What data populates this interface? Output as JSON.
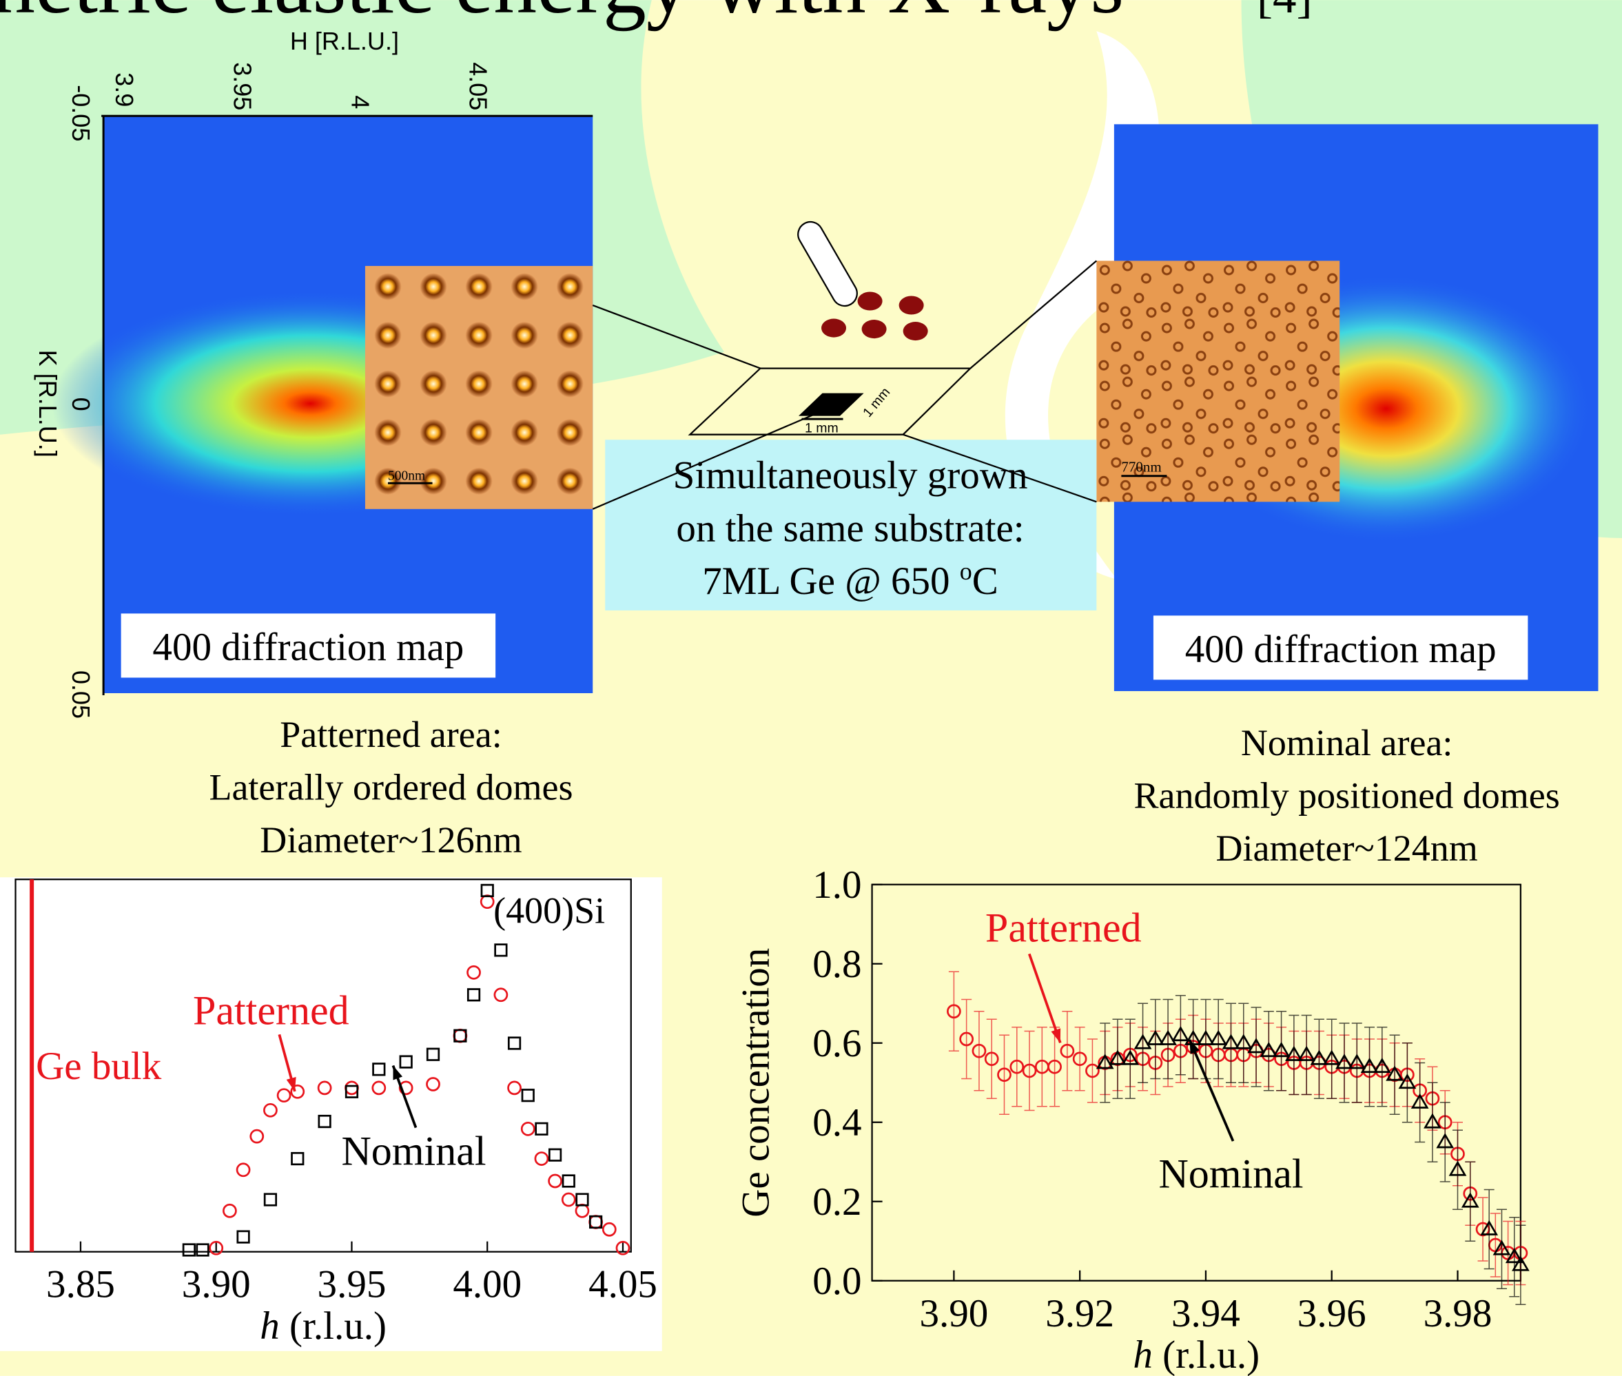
{
  "title": "netric elastic energy with X-rays",
  "title_ref": "[4]",
  "maps": [
    {
      "label": "400 diffraction map",
      "scale_bar": "500nm",
      "caption": [
        "Patterned area:",
        "Laterally ordered domes",
        "Diameter~126nm"
      ],
      "h_axis": "H [R.L.U.]",
      "h_ticks": [
        "3.9",
        "3.95",
        "4",
        "4.05"
      ],
      "k_axis": "K [R.L.U.]",
      "k_ticks": [
        "-0.05",
        "0",
        "0.05"
      ]
    },
    {
      "label": "400 diffraction map",
      "scale_bar": "770nm",
      "caption": [
        "Nominal area:",
        "Randomly positioned domes",
        "Diameter~124nm"
      ]
    }
  ],
  "substrate": {
    "lines": [
      "Simultaneously grown",
      "on the same substrate:"
    ],
    "growth": [
      "7ML Ge @  650 ",
      "o",
      "C"
    ],
    "dims": [
      "1 mm",
      "1 mm"
    ]
  },
  "chart_data": [
    {
      "type": "scatter",
      "x_label": {
        "var": "h",
        "unit": " (r.l.u.)"
      },
      "xlim": [
        3.826,
        4.053
      ],
      "xticks": [
        3.85,
        {
          "value": 3.9,
          "label": "3.90"
        },
        3.95,
        {
          "value": 4,
          "label": "4.00"
        },
        4.05
      ],
      "ylim": [
        0,
        1
      ],
      "vline": {
        "x": 3.832,
        "label": "Ge bulk",
        "color": "#e8141c"
      },
      "peak_label": "(400)Si",
      "series": [
        {
          "name": "Patterned",
          "color": "#e8141c",
          "marker": "circle",
          "x": [
            3.9,
            3.905,
            3.91,
            3.915,
            3.92,
            3.925,
            3.93,
            3.94,
            3.95,
            3.96,
            3.97,
            3.98,
            3.99,
            3.995,
            4.0,
            4.005,
            4.01,
            4.015,
            4.02,
            4.025,
            4.03,
            4.035,
            4.04,
            4.045,
            4.05
          ],
          "values": [
            0.01,
            0.11,
            0.22,
            0.31,
            0.38,
            0.42,
            0.43,
            0.44,
            0.44,
            0.44,
            0.44,
            0.45,
            0.58,
            0.75,
            0.94,
            0.69,
            0.44,
            0.33,
            0.25,
            0.19,
            0.14,
            0.11,
            0.08,
            0.06,
            0.01
          ]
        },
        {
          "name": "Nominal",
          "color": "#000000",
          "marker": "square",
          "x": [
            3.89,
            3.895,
            3.91,
            3.92,
            3.93,
            3.94,
            3.95,
            3.96,
            3.97,
            3.98,
            3.99,
            3.995,
            4.0,
            4.005,
            4.01,
            4.015,
            4.02,
            4.025,
            4.03,
            4.035,
            4.04
          ],
          "values": [
            0.005,
            0.005,
            0.04,
            0.14,
            0.25,
            0.35,
            0.43,
            0.49,
            0.51,
            0.53,
            0.58,
            0.69,
            0.97,
            0.81,
            0.56,
            0.42,
            0.33,
            0.26,
            0.19,
            0.14,
            0.08
          ]
        }
      ]
    },
    {
      "type": "errorbar",
      "x_label": {
        "var": "h",
        "unit": " (r.l.u.)"
      },
      "y_label": "Ge concentration",
      "xlim": [
        3.887,
        3.99
      ],
      "xticks": [
        {
          "value": 3.9,
          "label": "3.90"
        },
        3.92,
        3.94,
        3.96,
        3.98
      ],
      "ylim": [
        0,
        1
      ],
      "yticks": [
        {
          "value": 0,
          "label": "0.0"
        },
        0.2,
        0.4,
        0.6,
        0.8,
        {
          "value": 1,
          "label": "1.0"
        }
      ],
      "series": [
        {
          "name": "Patterned",
          "color": "#e8141c",
          "marker": "circle",
          "x": [
            3.9,
            3.902,
            3.904,
            3.906,
            3.908,
            3.91,
            3.912,
            3.914,
            3.916,
            3.918,
            3.92,
            3.922,
            3.924,
            3.926,
            3.928,
            3.93,
            3.932,
            3.934,
            3.936,
            3.938,
            3.94,
            3.942,
            3.944,
            3.946,
            3.948,
            3.95,
            3.952,
            3.954,
            3.956,
            3.958,
            3.96,
            3.962,
            3.964,
            3.966,
            3.968,
            3.97,
            3.972,
            3.974,
            3.976,
            3.978,
            3.98,
            3.982,
            3.984,
            3.986,
            3.988,
            3.99
          ],
          "values": [
            0.68,
            0.61,
            0.58,
            0.56,
            0.52,
            0.54,
            0.53,
            0.54,
            0.54,
            0.58,
            0.56,
            0.53,
            0.55,
            0.56,
            0.57,
            0.56,
            0.55,
            0.57,
            0.58,
            0.59,
            0.58,
            0.57,
            0.57,
            0.57,
            0.58,
            0.57,
            0.56,
            0.55,
            0.55,
            0.55,
            0.54,
            0.54,
            0.53,
            0.53,
            0.53,
            0.52,
            0.52,
            0.48,
            0.46,
            0.4,
            0.32,
            0.22,
            0.13,
            0.09,
            0.07,
            0.07
          ],
          "errors": [
            0.1,
            0.1,
            0.1,
            0.1,
            0.1,
            0.1,
            0.1,
            0.1,
            0.1,
            0.1,
            0.08,
            0.08,
            0.08,
            0.08,
            0.08,
            0.08,
            0.08,
            0.08,
            0.08,
            0.08,
            0.08,
            0.08,
            0.08,
            0.08,
            0.08,
            0.08,
            0.08,
            0.08,
            0.08,
            0.08,
            0.08,
            0.08,
            0.08,
            0.08,
            0.08,
            0.08,
            0.08,
            0.08,
            0.08,
            0.08,
            0.08,
            0.08,
            0.08,
            0.08,
            0.08,
            0.08
          ]
        },
        {
          "name": "Nominal",
          "color": "#000000",
          "marker": "triangle",
          "x": [
            3.924,
            3.926,
            3.928,
            3.93,
            3.932,
            3.934,
            3.936,
            3.938,
            3.94,
            3.942,
            3.944,
            3.946,
            3.948,
            3.95,
            3.952,
            3.954,
            3.956,
            3.958,
            3.96,
            3.962,
            3.964,
            3.966,
            3.968,
            3.97,
            3.972,
            3.974,
            3.976,
            3.978,
            3.98,
            3.982,
            3.985,
            3.987,
            3.989,
            3.99
          ],
          "values": [
            0.55,
            0.56,
            0.56,
            0.6,
            0.61,
            0.61,
            0.62,
            0.61,
            0.61,
            0.61,
            0.6,
            0.6,
            0.59,
            0.58,
            0.58,
            0.57,
            0.57,
            0.56,
            0.56,
            0.55,
            0.55,
            0.54,
            0.54,
            0.52,
            0.5,
            0.45,
            0.4,
            0.35,
            0.28,
            0.2,
            0.13,
            0.08,
            0.06,
            0.04
          ],
          "errors": [
            0.1,
            0.1,
            0.1,
            0.1,
            0.1,
            0.1,
            0.1,
            0.1,
            0.1,
            0.1,
            0.1,
            0.1,
            0.1,
            0.1,
            0.1,
            0.1,
            0.1,
            0.1,
            0.1,
            0.1,
            0.1,
            0.1,
            0.1,
            0.1,
            0.1,
            0.1,
            0.1,
            0.1,
            0.1,
            0.1,
            0.1,
            0.1,
            0.1,
            0.1
          ]
        }
      ]
    }
  ]
}
